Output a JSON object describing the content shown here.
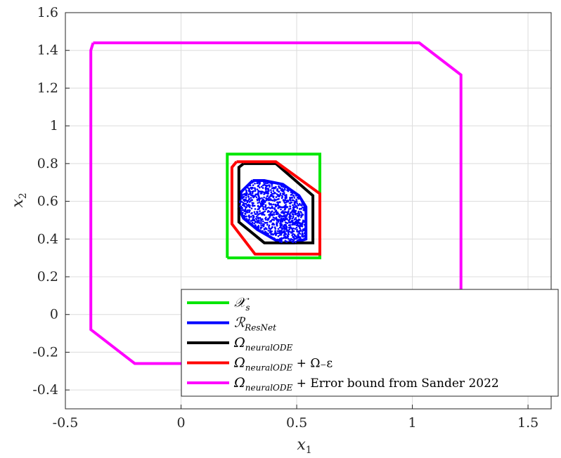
{
  "chart_data": {
    "type": "line",
    "title": "",
    "xlabel": "x",
    "xlabel_sub": "1",
    "ylabel": "x",
    "ylabel_sub": "2",
    "xlim": [
      -0.5,
      1.6
    ],
    "ylim": [
      -0.5,
      1.6
    ],
    "xticks": [
      -0.5,
      0,
      0.5,
      1,
      1.5
    ],
    "xtick_labels": [
      "-0.5",
      "0",
      "0.5",
      "1",
      "1.5"
    ],
    "yticks": [
      -0.4,
      -0.2,
      0,
      0.2,
      0.4,
      0.6,
      0.8,
      1,
      1.2,
      1.4,
      1.6
    ],
    "ytick_labels": [
      "-0.4",
      "-0.2",
      "0",
      "0.2",
      "0.4",
      "0.6",
      "0.8",
      "1",
      "1.2",
      "1.4",
      "1.6"
    ],
    "grid": true,
    "legend_position": "bottom-right",
    "series": [
      {
        "name": "𝒳_s",
        "legend": {
          "main": "𝒳",
          "sub": "s",
          "rest": ""
        },
        "color": "#00e600",
        "x": [
          0.2,
          0.6,
          0.6,
          0.2,
          0.2
        ],
        "y": [
          0.3,
          0.3,
          0.85,
          0.85,
          0.3
        ]
      },
      {
        "name": "ℛ_ResNet",
        "legend": {
          "main": "ℛ",
          "sub": "ResNet",
          "rest": ""
        },
        "color": "#0000ff",
        "x": [
          0.31,
          0.36,
          0.44,
          0.51,
          0.54,
          0.54,
          0.49,
          0.43,
          0.33,
          0.27,
          0.25,
          0.26,
          0.31
        ],
        "y": [
          0.71,
          0.71,
          0.69,
          0.63,
          0.57,
          0.4,
          0.38,
          0.38,
          0.45,
          0.51,
          0.56,
          0.65,
          0.71
        ]
      },
      {
        "name": "Ω_neuralODE",
        "legend": {
          "main": "Ω",
          "sub": "neuralODE",
          "rest": ""
        },
        "color": "#000000",
        "x": [
          0.27,
          0.41,
          0.57,
          0.57,
          0.36,
          0.25,
          0.25,
          0.27
        ],
        "y": [
          0.8,
          0.8,
          0.63,
          0.38,
          0.38,
          0.49,
          0.78,
          0.8
        ]
      },
      {
        "name": "Ω_neuralODE + Ω_−ε",
        "legend": {
          "main": "Ω",
          "sub": "neuralODE",
          "rest": " + Ω₋ε"
        },
        "color": "#ff0000",
        "x": [
          0.24,
          0.41,
          0.6,
          0.6,
          0.32,
          0.22,
          0.22,
          0.24
        ],
        "y": [
          0.81,
          0.81,
          0.64,
          0.32,
          0.32,
          0.48,
          0.78,
          0.81
        ]
      },
      {
        "name": "Ω_neuralODE + Error bound from Sander 2022",
        "legend": {
          "main": "Ω",
          "sub": "neuralODE",
          "rest": " + Error bound from Sander 2022"
        },
        "color": "#ff00ff",
        "x": [
          -0.38,
          1.03,
          1.21,
          1.21,
          -0.2,
          -0.39,
          -0.39,
          -0.38
        ],
        "y": [
          1.44,
          1.44,
          1.27,
          -0.26,
          -0.26,
          -0.08,
          1.4,
          1.44
        ]
      }
    ]
  }
}
